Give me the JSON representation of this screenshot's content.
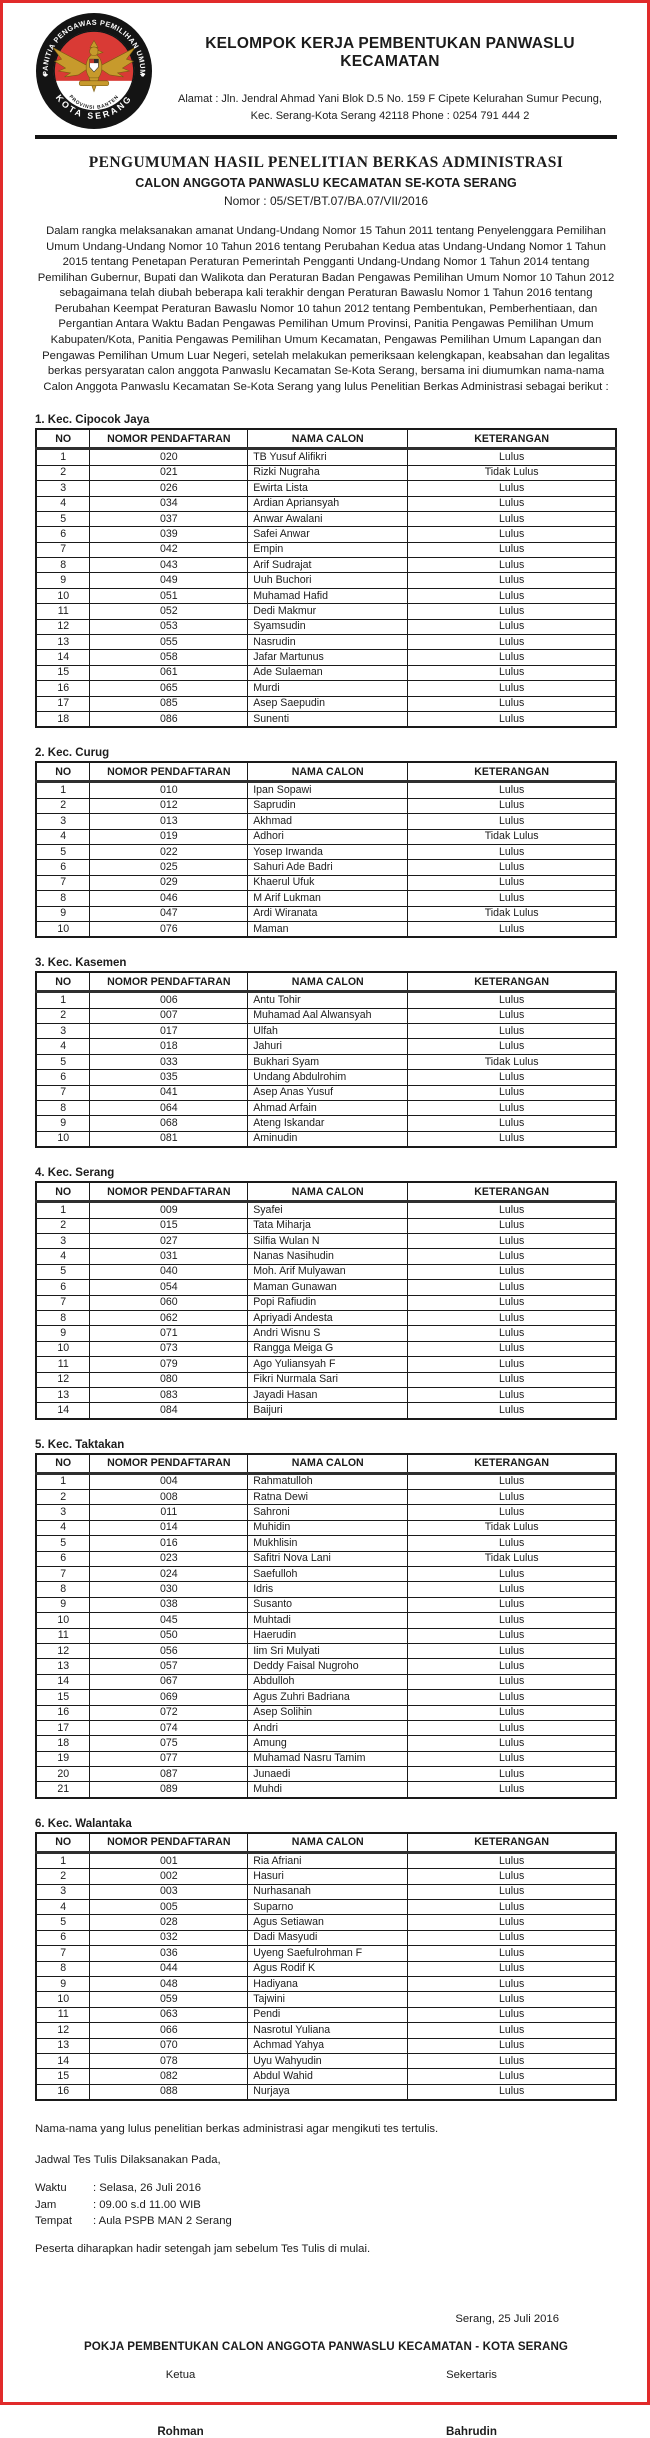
{
  "colors": {
    "page_border": "#e12a2a",
    "rule": "#141414",
    "table_border": "#1a1a1a",
    "flag_red": "#d93a35",
    "gold": "#c79a2c",
    "ink": "#1c1c1c"
  },
  "header": {
    "org_title": "KELOMPOK KERJA PEMBENTUKAN PANWASLU KECAMATAN",
    "address_line1": "Alamat : Jln. Jendral Ahmad Yani Blok D.5 No. 159 F Cipete Kelurahan Sumur Pecung,",
    "address_line2": "Kec. Serang-Kota Serang 42118 Phone : 0254 791 444 2",
    "logo": {
      "ring_top": "PANITIA PENGAWAS PEMILIHAN UMUM",
      "ring_bottom": "KOTA SERANG",
      "inner_bottom": "PROVINSI BANTEN"
    }
  },
  "document": {
    "title": "PENGUMUMAN HASIL PENELITIAN BERKAS ADMINISTRASI",
    "subtitle": "CALON ANGGOTA PANWASLU KECAMATAN SE-KOTA SERANG",
    "number": "Nomor : 05/SET/BT.07/BA.07/VII/2016",
    "intro": "Dalam rangka melaksanakan amanat Undang-Undang Nomor 15 Tahun 2011 tentang Penyelenggara Pemilihan Umum Undang-Undang Nomor 10 Tahun 2016 tentang Perubahan Kedua atas Undang-Undang Nomor 1 Tahun 2015 tentang Penetapan Peraturan Pemerintah Pengganti Undang-Undang Nomor 1 Tahun 2014 tentang Pemilihan Gubernur, Bupati dan Walikota dan Peraturan Badan Pengawas Pemilihan Umum Nomor 10 Tahun 2012 sebagaimana telah diubah beberapa kali terakhir dengan Peraturan Bawaslu Nomor 1 Tahun 2016 tentang Perubahan Keempat Peraturan Bawaslu Nomor 10 tahun 2012 tentang Pembentukan, Pemberhentiaan, dan Pergantian Antara Waktu Badan Pengawas Pemilihan Umum Provinsi, Panitia Pengawas Pemilihan Umum Kabupaten/Kota, Panitia Pengawas Pemilihan Umum Kecamatan, Pengawas Pemilihan Umum Lapangan dan Pengawas Pemilihan Umum Luar Negeri, setelah melakukan pemeriksaan kelengkapan, keabsahan dan legalitas berkas persyaratan calon anggota Panwaslu Kecamatan Se-Kota Serang, bersama ini diumumkan nama-nama Calon Anggota Panwaslu Kecamatan Se-Kota Serang yang lulus Penelitian Berkas Administrasi sebagai berikut :"
  },
  "table_headers": [
    "NO",
    "NOMOR PENDAFTARAN",
    "NAMA CALON",
    "KETERANGAN"
  ],
  "sections": [
    {
      "label": "1. Kec. Cipocok Jaya",
      "rows": [
        [
          "1",
          "020",
          "TB Yusuf Alifikri",
          "Lulus"
        ],
        [
          "2",
          "021",
          "Rizki Nugraha",
          "Tidak Lulus"
        ],
        [
          "3",
          "026",
          "Ewirta Lista",
          "Lulus"
        ],
        [
          "4",
          "034",
          "Ardian Apriansyah",
          "Lulus"
        ],
        [
          "5",
          "037",
          "Anwar Awalani",
          "Lulus"
        ],
        [
          "6",
          "039",
          "Safei Anwar",
          "Lulus"
        ],
        [
          "7",
          "042",
          "Empin",
          "Lulus"
        ],
        [
          "8",
          "043",
          "Arif Sudrajat",
          "Lulus"
        ],
        [
          "9",
          "049",
          "Uuh Buchori",
          "Lulus"
        ],
        [
          "10",
          "051",
          "Muhamad Hafid",
          "Lulus"
        ],
        [
          "11",
          "052",
          "Dedi Makmur",
          "Lulus"
        ],
        [
          "12",
          "053",
          "Syamsudin",
          "Lulus"
        ],
        [
          "13",
          "055",
          "Nasrudin",
          "Lulus"
        ],
        [
          "14",
          "058",
          "Jafar Martunus",
          "Lulus"
        ],
        [
          "15",
          "061",
          "Ade Sulaeman",
          "Lulus"
        ],
        [
          "16",
          "065",
          "Murdi",
          "Lulus"
        ],
        [
          "17",
          "085",
          "Asep Saepudin",
          "Lulus"
        ],
        [
          "18",
          "086",
          "Sunenti",
          "Lulus"
        ]
      ]
    },
    {
      "label": "2. Kec. Curug",
      "rows": [
        [
          "1",
          "010",
          "Ipan Sopawi",
          "Lulus"
        ],
        [
          "2",
          "012",
          "Saprudin",
          "Lulus"
        ],
        [
          "3",
          "013",
          "Akhmad",
          "Lulus"
        ],
        [
          "4",
          "019",
          "Adhori",
          "Tidak Lulus"
        ],
        [
          "5",
          "022",
          "Yosep Irwanda",
          "Lulus"
        ],
        [
          "6",
          "025",
          "Sahuri Ade Badri",
          "Lulus"
        ],
        [
          "7",
          "029",
          "Khaerul Ufuk",
          "Lulus"
        ],
        [
          "8",
          "046",
          "M Arif Lukman",
          "Lulus"
        ],
        [
          "9",
          "047",
          "Ardi Wiranata",
          "Tidak Lulus"
        ],
        [
          "10",
          "076",
          "Maman",
          "Lulus"
        ]
      ]
    },
    {
      "label": "3. Kec. Kasemen",
      "rows": [
        [
          "1",
          "006",
          "Antu Tohir",
          "Lulus"
        ],
        [
          "2",
          "007",
          "Muhamad Aal Alwansyah",
          "Lulus"
        ],
        [
          "3",
          "017",
          "Ulfah",
          "Lulus"
        ],
        [
          "4",
          "018",
          "Jahuri",
          "Lulus"
        ],
        [
          "5",
          "033",
          "Bukhari Syam",
          "Tidak Lulus"
        ],
        [
          "6",
          "035",
          "Undang Abdulrohim",
          "Lulus"
        ],
        [
          "7",
          "041",
          "Asep Anas Yusuf",
          "Lulus"
        ],
        [
          "8",
          "064",
          "Ahmad Arfain",
          "Lulus"
        ],
        [
          "9",
          "068",
          "Ateng Iskandar",
          "Lulus"
        ],
        [
          "10",
          "081",
          "Aminudin",
          "Lulus"
        ]
      ]
    },
    {
      "label": "4. Kec. Serang",
      "rows": [
        [
          "1",
          "009",
          "Syafei",
          "Lulus"
        ],
        [
          "2",
          "015",
          "Tata Miharja",
          "Lulus"
        ],
        [
          "3",
          "027",
          "Silfia Wulan N",
          "Lulus"
        ],
        [
          "4",
          "031",
          "Nanas Nasihudin",
          "Lulus"
        ],
        [
          "5",
          "040",
          "Moh. Arif Mulyawan",
          "Lulus"
        ],
        [
          "6",
          "054",
          "Maman Gunawan",
          "Lulus"
        ],
        [
          "7",
          "060",
          "Popi Rafiudin",
          "Lulus"
        ],
        [
          "8",
          "062",
          "Apriyadi Andesta",
          "Lulus"
        ],
        [
          "9",
          "071",
          "Andri Wisnu S",
          "Lulus"
        ],
        [
          "10",
          "073",
          "Rangga Meiga G",
          "Lulus"
        ],
        [
          "11",
          "079",
          "Ago Yuliansyah F",
          "Lulus"
        ],
        [
          "12",
          "080",
          "Fikri Nurmala Sari",
          "Lulus"
        ],
        [
          "13",
          "083",
          "Jayadi Hasan",
          "Lulus"
        ],
        [
          "14",
          "084",
          "Baijuri",
          "Lulus"
        ]
      ]
    },
    {
      "label": "5. Kec. Taktakan",
      "rows": [
        [
          "1",
          "004",
          "Rahmatulloh",
          "Lulus"
        ],
        [
          "2",
          "008",
          "Ratna Dewi",
          "Lulus"
        ],
        [
          "3",
          "011",
          "Sahroni",
          "Lulus"
        ],
        [
          "4",
          "014",
          "Muhidin",
          "Tidak Lulus"
        ],
        [
          "5",
          "016",
          "Mukhlisin",
          "Lulus"
        ],
        [
          "6",
          "023",
          "Safitri Nova Lani",
          "Tidak Lulus"
        ],
        [
          "7",
          "024",
          "Saefulloh",
          "Lulus"
        ],
        [
          "8",
          "030",
          "Idris",
          "Lulus"
        ],
        [
          "9",
          "038",
          "Susanto",
          "Lulus"
        ],
        [
          "10",
          "045",
          "Muhtadi",
          "Lulus"
        ],
        [
          "11",
          "050",
          "Haerudin",
          "Lulus"
        ],
        [
          "12",
          "056",
          "Iim Sri Mulyati",
          "Lulus"
        ],
        [
          "13",
          "057",
          "Deddy Faisal Nugroho",
          "Lulus"
        ],
        [
          "14",
          "067",
          "Abdulloh",
          "Lulus"
        ],
        [
          "15",
          "069",
          "Agus Zuhri Badriana",
          "Lulus"
        ],
        [
          "16",
          "072",
          "Asep Solihin",
          "Lulus"
        ],
        [
          "17",
          "074",
          "Andri",
          "Lulus"
        ],
        [
          "18",
          "075",
          "Amung",
          "Lulus"
        ],
        [
          "19",
          "077",
          "Muhamad Nasru Tamim",
          "Lulus"
        ],
        [
          "20",
          "087",
          "Junaedi",
          "Lulus"
        ],
        [
          "21",
          "089",
          "Muhdi",
          "Lulus"
        ]
      ]
    },
    {
      "label": "6. Kec. Walantaka",
      "rows": [
        [
          "1",
          "001",
          "Ria Afriani",
          "Lulus"
        ],
        [
          "2",
          "002",
          "Hasuri",
          "Lulus"
        ],
        [
          "3",
          "003",
          "Nurhasanah",
          "Lulus"
        ],
        [
          "4",
          "005",
          "Suparno",
          "Lulus"
        ],
        [
          "5",
          "028",
          "Agus Setiawan",
          "Lulus"
        ],
        [
          "6",
          "032",
          "Dadi Masyudi",
          "Lulus"
        ],
        [
          "7",
          "036",
          "Uyeng Saefulrohman F",
          "Lulus"
        ],
        [
          "8",
          "044",
          "Agus Rodif K",
          "Lulus"
        ],
        [
          "9",
          "048",
          "Hadiyana",
          "Lulus"
        ],
        [
          "10",
          "059",
          "Tajwini",
          "Lulus"
        ],
        [
          "11",
          "063",
          "Pendi",
          "Lulus"
        ],
        [
          "12",
          "066",
          "Nasrotul Yuliana",
          "Lulus"
        ],
        [
          "13",
          "070",
          "Achmad Yahya",
          "Lulus"
        ],
        [
          "14",
          "078",
          "Uyu Wahyudin",
          "Lulus"
        ],
        [
          "15",
          "082",
          "Abdul Wahid",
          "Lulus"
        ],
        [
          "16",
          "088",
          "Nurjaya",
          "Lulus"
        ]
      ]
    }
  ],
  "closing": {
    "note1": "Nama-nama yang lulus penelitian berkas administrasi agar mengikuti tes tertulis.",
    "schedule_heading": "Jadwal Tes Tulis Dilaksanakan Pada,",
    "schedule": [
      {
        "label": "Waktu",
        "value": ": Selasa, 26 Juli 2016"
      },
      {
        "label": "Jam",
        "value": ": 09.00 s.d 11.00 WIB"
      },
      {
        "label": "Tempat",
        "value": ": Aula PSPB MAN 2 Serang"
      }
    ],
    "note2": "Peserta diharapkan hadir setengah jam sebelum Tes Tulis di mulai."
  },
  "signature": {
    "place_date": "Serang, 25 Juli 2016",
    "committee": "POKJA PEMBENTUKAN CALON ANGGOTA PANWASLU KECAMATAN - KOTA SERANG",
    "left_role": "Ketua",
    "right_role": "Sekertaris",
    "left_name": "Rohman",
    "right_name": "Bahrudin"
  }
}
